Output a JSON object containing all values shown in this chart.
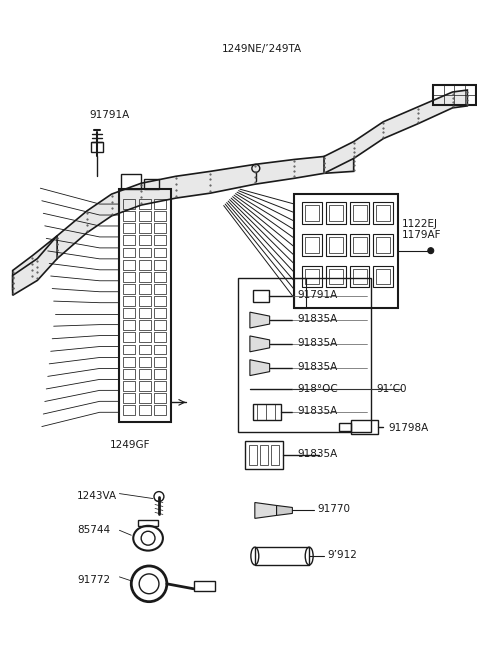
{
  "bg_color": "#ffffff",
  "line_color": "#1a1a1a",
  "gray_color": "#888888",
  "light_gray": "#cccccc",
  "labels": {
    "1249NE_249TA": "1249NE/’249TA",
    "91791A_top": "91791A",
    "1122EJ": "1122EJ",
    "1179AF": "1179AF",
    "91791A_mid": "91791A",
    "91835A_1": "91835A",
    "91835A_2": "91835A",
    "91835A_3": "91835A",
    "91800C": "918°OC",
    "91C0": "91’C0",
    "91835A_4": "91835A",
    "91835A_5": "91835A",
    "1249GF": "1249GF",
    "91798A": "91798A",
    "1243VA": "1243VA",
    "85744": "85744",
    "91772": "91772",
    "91770": "91770",
    "91912": "9’912"
  },
  "figsize": [
    4.8,
    6.57
  ],
  "dpi": 100
}
